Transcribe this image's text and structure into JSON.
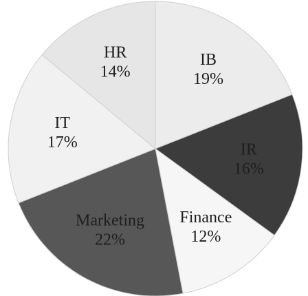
{
  "chart_data": {
    "type": "pie",
    "categories": [
      "IB",
      "IR",
      "Finance",
      "Marketing",
      "IT",
      "HR"
    ],
    "values": [
      19,
      16,
      12,
      22,
      17,
      14
    ],
    "value_labels": [
      "19%",
      "16%",
      "12%",
      "22%",
      "17%",
      "14%"
    ],
    "colors": [
      "#ececec",
      "#3c3c3c",
      "#f6f6f6",
      "#575757",
      "#f1f1f1",
      "#e6e6e6"
    ]
  }
}
